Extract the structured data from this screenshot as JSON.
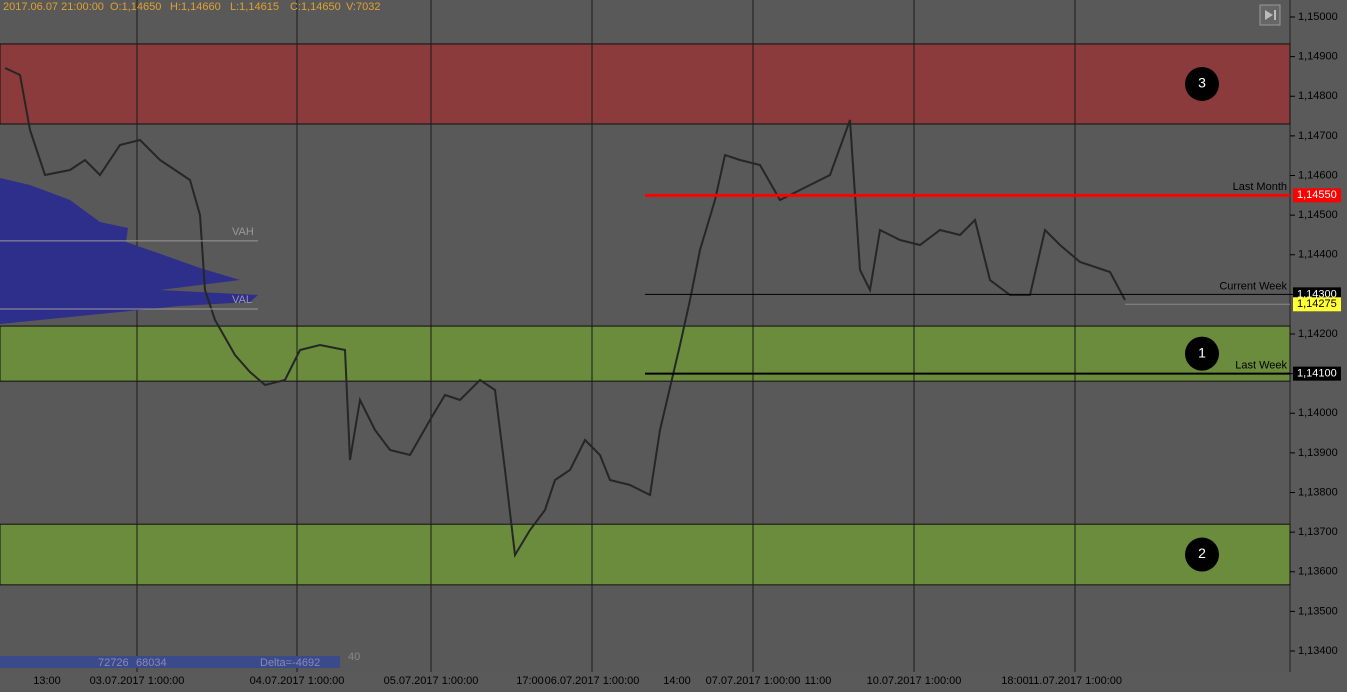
{
  "header": {
    "date": "2017.06.07 21:00:00",
    "open": "O:1,14650",
    "high": "H:1,14660",
    "low": "L:1,14615",
    "close": "C:1,14650",
    "volume": "V:7032"
  },
  "price_axis": {
    "ylim": [
      1.133092,
      1.150429
    ],
    "ticks": [
      {
        "value": 1.15,
        "label": "1,15000"
      },
      {
        "value": 1.149,
        "label": "1,14900"
      },
      {
        "value": 1.148,
        "label": "1,14800"
      },
      {
        "value": 1.147,
        "label": "1,14700"
      },
      {
        "value": 1.146,
        "label": "1,14600"
      },
      {
        "value": 1.145,
        "label": "1,14500"
      },
      {
        "value": 1.144,
        "label": "1,14400"
      },
      {
        "value": 1.143,
        "label": "1,14300"
      },
      {
        "value": 1.142,
        "label": "1,14200"
      },
      {
        "value": 1.141,
        "label": "1,14100"
      },
      {
        "value": 1.14,
        "label": "1,14000"
      },
      {
        "value": 1.139,
        "label": "1,13900"
      },
      {
        "value": 1.138,
        "label": "1,13800"
      },
      {
        "value": 1.137,
        "label": "1,13700"
      },
      {
        "value": 1.136,
        "label": "1,13600"
      },
      {
        "value": 1.135,
        "label": "1,13500"
      },
      {
        "value": 1.134,
        "label": "1,13400"
      }
    ]
  },
  "zones": [
    {
      "label": "3",
      "top": 1.14932,
      "bottom": 1.1473,
      "color": "#8b3b3b"
    },
    {
      "label": "1",
      "top": 1.1422,
      "bottom": 1.14081,
      "color": "#6a8c3c"
    },
    {
      "label": "2",
      "top": 1.1372,
      "bottom": 1.13567,
      "color": "#6a8c3c"
    }
  ],
  "value_area": [
    {
      "label": "VAH",
      "price": 1.14435
    },
    {
      "label": "VAL",
      "price": 1.14263
    }
  ],
  "levels": [
    {
      "name": "Last Month",
      "price": 1.1455,
      "price_label": "1,14550",
      "color": "#ff0000"
    },
    {
      "name": "Current Week",
      "price": 1.143,
      "price_label": "1,14300",
      "color": "#000000"
    },
    {
      "name": "Last Week",
      "price": 1.141,
      "price_label": "1,14100",
      "color": "#000000"
    }
  ],
  "last_price": {
    "price": 1.14275,
    "label": "1,14275",
    "color": "#ffff33"
  },
  "time_labels": [
    "13:00",
    "03.07.2017 1:00:00",
    "04.07.2017 1:00:00",
    "05.07.2017 1:00:00",
    "17:00",
    "06.07.2017 1:00:00",
    "14:00",
    "07.07.2017 1:00:00",
    "11:00",
    "10.07.2017 1:00:00",
    "18:00",
    "11.07.2017 1:00:00"
  ],
  "footer": {
    "buy": "72726",
    "sell": "68034",
    "delta": "Delta=-4692",
    "count": "40"
  }
}
